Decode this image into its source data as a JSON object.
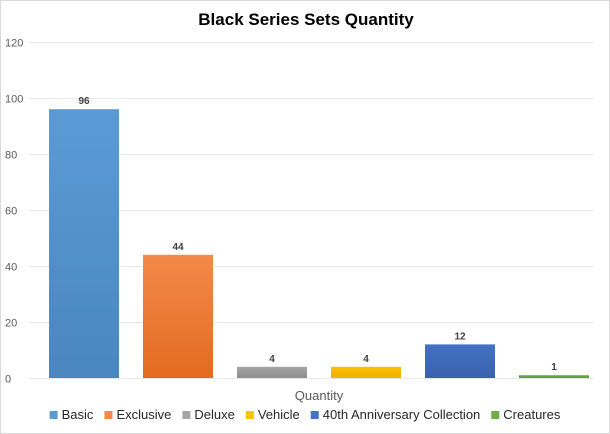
{
  "chart_data": {
    "type": "bar",
    "title": "Black Series Sets Quantity",
    "xlabel": "Quantity",
    "ylabel": "",
    "ylim": [
      0,
      120
    ],
    "yticks": [
      0,
      20,
      40,
      60,
      80,
      100,
      120
    ],
    "grid": true,
    "legend_position": "bottom",
    "series": [
      {
        "name": "Basic",
        "values": [
          96
        ],
        "color": "#5B9BD5",
        "color_dark": "#4A86C0"
      },
      {
        "name": "Exclusive",
        "values": [
          44
        ],
        "color": "#F4894A",
        "color_dark": "#E26B1F"
      },
      {
        "name": "Deluxe",
        "values": [
          4
        ],
        "color": "#A5A5A5",
        "color_dark": "#8E8E8E"
      },
      {
        "name": "Vehicle",
        "values": [
          4
        ],
        "color": "#FFC000",
        "color_dark": "#EDB100"
      },
      {
        "name": "40th Anniversary Collection",
        "values": [
          12
        ],
        "color": "#4472C4",
        "color_dark": "#3961AE"
      },
      {
        "name": "Creatures",
        "values": [
          1
        ],
        "color": "#70AD47",
        "color_dark": "#5E983A"
      }
    ]
  }
}
